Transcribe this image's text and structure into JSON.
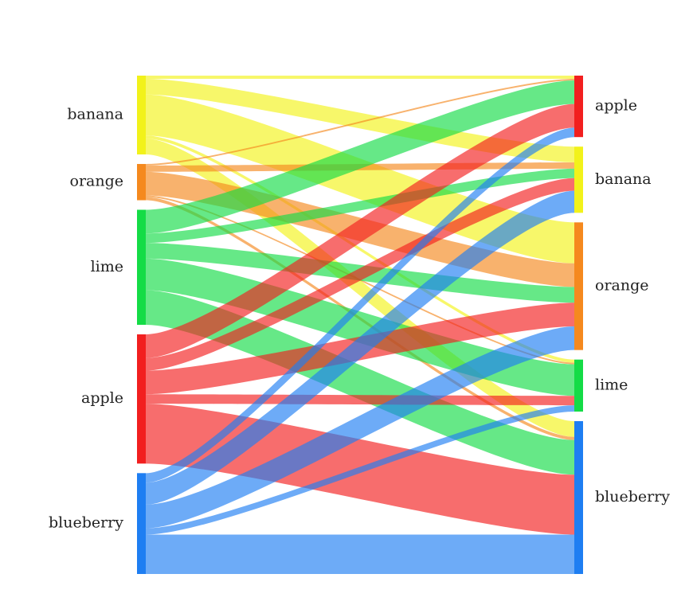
{
  "chart_data": {
    "type": "sankey",
    "title": "",
    "source_nodes": [
      {
        "name": "banana",
        "color": "#f2f21a"
      },
      {
        "name": "orange",
        "color": "#f5891e"
      },
      {
        "name": "lime",
        "color": "#14dc46"
      },
      {
        "name": "apple",
        "color": "#f21f1f"
      },
      {
        "name": "blueberry",
        "color": "#1e7ef2"
      }
    ],
    "target_nodes": [
      {
        "name": "apple",
        "color": "#f21f1f"
      },
      {
        "name": "banana",
        "color": "#f2f21a"
      },
      {
        "name": "orange",
        "color": "#f5891e"
      },
      {
        "name": "lime",
        "color": "#14dc46"
      },
      {
        "name": "blueberry",
        "color": "#1e7ef2"
      }
    ],
    "flows": [
      {
        "source": "banana",
        "target": "apple",
        "value": 2
      },
      {
        "source": "banana",
        "target": "banana",
        "value": 10
      },
      {
        "source": "banana",
        "target": "orange",
        "value": 26
      },
      {
        "source": "banana",
        "target": "lime",
        "value": 2
      },
      {
        "source": "banana",
        "target": "blueberry",
        "value": 10
      },
      {
        "source": "orange",
        "target": "apple",
        "value": 1
      },
      {
        "source": "orange",
        "target": "banana",
        "value": 4
      },
      {
        "source": "orange",
        "target": "orange",
        "value": 15
      },
      {
        "source": "orange",
        "target": "lime",
        "value": 1
      },
      {
        "source": "orange",
        "target": "blueberry",
        "value": 2
      },
      {
        "source": "lime",
        "target": "apple",
        "value": 15
      },
      {
        "source": "lime",
        "target": "banana",
        "value": 6
      },
      {
        "source": "lime",
        "target": "orange",
        "value": 10
      },
      {
        "source": "lime",
        "target": "lime",
        "value": 20
      },
      {
        "source": "lime",
        "target": "blueberry",
        "value": 22
      },
      {
        "source": "apple",
        "target": "apple",
        "value": 15
      },
      {
        "source": "apple",
        "target": "banana",
        "value": 8
      },
      {
        "source": "apple",
        "target": "orange",
        "value": 15
      },
      {
        "source": "apple",
        "target": "lime",
        "value": 6
      },
      {
        "source": "apple",
        "target": "blueberry",
        "value": 38
      },
      {
        "source": "blueberry",
        "target": "apple",
        "value": 6
      },
      {
        "source": "blueberry",
        "target": "banana",
        "value": 14
      },
      {
        "source": "blueberry",
        "target": "orange",
        "value": 15
      },
      {
        "source": "blueberry",
        "target": "lime",
        "value": 4
      },
      {
        "source": "blueberry",
        "target": "blueberry",
        "value": 25
      }
    ]
  }
}
